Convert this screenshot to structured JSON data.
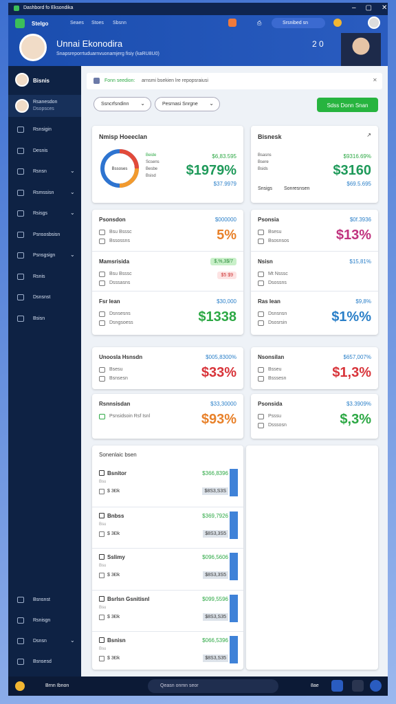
{
  "window": {
    "title": "Dashbord fo Eksondika"
  },
  "header": {
    "app": "Stelgo",
    "tabs": [
      "Seaes",
      "Stoes",
      "Sbsnn"
    ],
    "search": "Srsnibed sn",
    "title": "Unnai Ekonodira",
    "subtitle": "Snapsreporrtuduarnvuonamjerg fisiy (kaRU8U0)",
    "badge": "2 0"
  },
  "sidebar": {
    "user": "Bisnis",
    "profile": {
      "name": "Rsanesdon",
      "role": "Dsopsces"
    },
    "items": [
      {
        "label": "Rsnsigin",
        "expand": false
      },
      {
        "label": "Desnis",
        "expand": false
      },
      {
        "label": "Rsnsn",
        "expand": true
      },
      {
        "label": "Rsmssisn",
        "expand": true
      },
      {
        "label": "Rsisgs",
        "expand": true
      },
      {
        "label": "Psnsosbsisn",
        "expand": false
      },
      {
        "label": "Psnsgsign",
        "expand": true
      },
      {
        "label": "Rsnis",
        "expand": false
      },
      {
        "label": "Dsnsnst",
        "expand": false
      },
      {
        "label": "Bsisn",
        "expand": false
      }
    ],
    "bottom_items": [
      {
        "label": "Bsnsnst",
        "expand": false
      },
      {
        "label": "Rsnisgn",
        "expand": false
      },
      {
        "label": "Dsnsn",
        "expand": true
      },
      {
        "label": "Bsnsesd",
        "expand": false
      }
    ]
  },
  "notice": {
    "lead": "Fonn seedion:",
    "text": "arnsmi bsekien lre repopsraiusi"
  },
  "filters": [
    "Ssncrfsndinn",
    "Pesrnasi Snrgne"
  ],
  "action": "Sdss Donn Snan",
  "summary": [
    {
      "title": "Nmisp Hoeeclan",
      "center": "Bssoses",
      "legend": [
        "Beide",
        "Scsens",
        "Besbe",
        "Bsisd"
      ],
      "value": "$6,83.595",
      "big": "$1979%",
      "sub": "$37.9979"
    },
    {
      "title": "Bisnesk",
      "legend": [
        "Bsasns",
        "Bsere",
        "Bsids"
      ],
      "value": "$9316.69%",
      "big": "$3160",
      "sub": "$69.5.695",
      "footer": [
        "Snsigs",
        "Sonresnsen"
      ]
    }
  ],
  "panels": [
    {
      "rows": [
        {
          "title": "Psonsdon",
          "value": "$000000",
          "big": "5%",
          "color": "#e8812a",
          "lines": [
            "Bsu Bsssc",
            "Bssossns"
          ]
        },
        {
          "title": "Mamsrisida",
          "badges": [
            "$,%,3$/7",
            "$5 $9"
          ],
          "lines": [
            "Bsu Bsssc",
            "Dsssasns"
          ]
        },
        {
          "title": "Fsr Iean",
          "value": "$30,000",
          "big": "$1338",
          "color": "#2ca844",
          "lines": [
            "Dsnsesns",
            "Dsngsoess"
          ]
        }
      ]
    },
    {
      "rows": [
        {
          "title": "Psonsia",
          "value": "$0f.3936",
          "big": "$13%",
          "color": "#c0327e",
          "lines": [
            "Bsesu",
            "Bsosnsos"
          ]
        },
        {
          "title": "Nsisn",
          "value": "$15,81%",
          "lines": [
            "Mt Nsssc",
            "Dsossns"
          ]
        },
        {
          "title": "Ras Iean",
          "value": "$9,8%",
          "big": "$1%%",
          "color": "#2a7fc8",
          "lines": [
            "Dsnsnsn",
            "Dsosrsin"
          ]
        }
      ]
    },
    {
      "rows": [
        {
          "title": "Unoosla Hsnsdn",
          "value": "$005,8300%",
          "big": "$33%",
          "color": "#d8343a",
          "lines": [
            "Bsesu",
            "Bsnsesn"
          ]
        }
      ]
    },
    {
      "rows": [
        {
          "title": "Nsonsilan",
          "value": "$657,007%",
          "big": "$1,3%",
          "color": "#d8343a",
          "lines": [
            "Bsseu",
            "Bsssesn"
          ]
        }
      ]
    },
    {
      "rows": [
        {
          "title": "Rsnnsisdan",
          "value": "$33,30000",
          "big": "$93%",
          "color": "#e8812a",
          "lines": [
            "Psnsidsoin Rsf Isnl"
          ]
        }
      ]
    },
    {
      "rows": [
        {
          "title": "Psonsida",
          "value": "$3.3909%",
          "big": "$,3%",
          "color": "#2ca844",
          "lines": [
            "Psssu",
            "Dsssosn"
          ]
        }
      ]
    }
  ],
  "list": {
    "title": "Sonenlaic bsen",
    "items": [
      {
        "title": "Bsnitor",
        "value": "$366,8396",
        "meta": "Bsu",
        "code": "$ 3Đk",
        "amount": "$8S3,S3S"
      },
      {
        "title": "Bnbss",
        "value": "$369,7926",
        "meta": "Bsu",
        "code": "$ 3Đk",
        "amount": "$8S3,3S5"
      },
      {
        "title": "Sslimy",
        "value": "$096,5606",
        "meta": "Bsu",
        "code": "$ 3Đk",
        "amount": "$8S3,3S5"
      },
      {
        "title": "Bsrlsn Gsnitisnl",
        "value": "$099,5596",
        "meta": "Bsu",
        "code": "$ 3Đk",
        "amount": "$8S3,S35"
      },
      {
        "title": "Bsnisn",
        "value": "$066,5396",
        "meta": "Bsu",
        "code": "$ 3Đk",
        "amount": "$8S3,S35"
      }
    ]
  },
  "taskbar": {
    "user": "Brnn Ibnon",
    "search": "Qeasn onmn seor",
    "time": "8ae"
  }
}
